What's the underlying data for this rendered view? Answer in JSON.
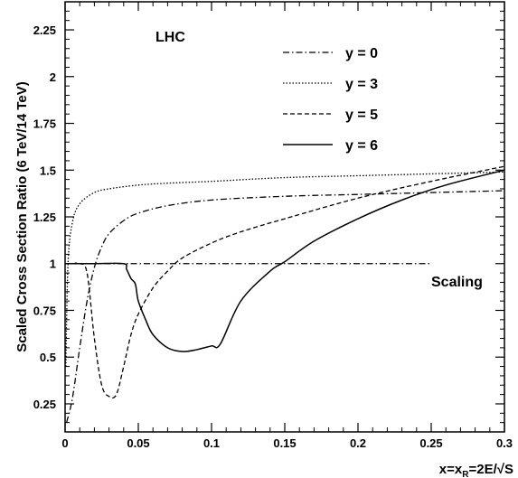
{
  "chart_data": {
    "type": "line",
    "title": "",
    "xlabel": "x=x_R=2E/√S",
    "xlabel_parts": [
      "x=x",
      "R",
      "=2E/√S"
    ],
    "ylabel": "Scaled Cross Section Ratio (6 TeV/14 TeV)",
    "xlim": [
      0,
      0.3
    ],
    "ylim": [
      0.1,
      2.4
    ],
    "xticks": [
      0,
      0.05,
      0.1,
      0.15,
      0.2,
      0.25,
      0.3
    ],
    "xtick_labels": [
      "0",
      "0.05",
      "0.1",
      "0.15",
      "0.2",
      "0.25",
      "0.3"
    ],
    "yticks": [
      0.25,
      0.5,
      0.75,
      1,
      1.25,
      1.5,
      1.75,
      2,
      2.25
    ],
    "ytick_labels": [
      "0.25",
      "0.5",
      "0.75",
      "1",
      "1.25",
      "1.5",
      "1.75",
      "2",
      "2.25"
    ],
    "grid": false,
    "legend_position": "top-right",
    "annotations": {
      "lhc": "LHC",
      "scaling": "Scaling"
    },
    "series": [
      {
        "name": "y = 0",
        "style": "dashdot",
        "x": [
          0.001,
          0.005,
          0.01,
          0.015,
          0.02,
          0.025,
          0.03,
          0.04,
          0.05,
          0.07,
          0.1,
          0.15,
          0.2,
          0.25,
          0.3
        ],
        "y": [
          0.15,
          0.28,
          0.55,
          0.8,
          0.98,
          1.09,
          1.16,
          1.23,
          1.27,
          1.31,
          1.34,
          1.36,
          1.37,
          1.38,
          1.39
        ]
      },
      {
        "name": "y = 3",
        "style": "dotted",
        "x": [
          0.0005,
          0.002,
          0.005,
          0.01,
          0.02,
          0.03,
          0.05,
          0.07,
          0.1,
          0.15,
          0.2,
          0.25,
          0.3
        ],
        "y": [
          0.45,
          1.0,
          1.22,
          1.32,
          1.38,
          1.4,
          1.42,
          1.43,
          1.44,
          1.46,
          1.47,
          1.48,
          1.49
        ]
      },
      {
        "name": "y = 5",
        "style": "dashed",
        "x": [
          0.0,
          0.005,
          0.01,
          0.015,
          0.02,
          0.025,
          0.03,
          0.035,
          0.04,
          0.045,
          0.05,
          0.06,
          0.07,
          0.08,
          0.1,
          0.12,
          0.15,
          0.2,
          0.25,
          0.3
        ],
        "y": [
          1.0,
          1.0,
          1.0,
          0.95,
          0.6,
          0.35,
          0.29,
          0.3,
          0.45,
          0.62,
          0.73,
          0.87,
          0.96,
          1.03,
          1.11,
          1.17,
          1.24,
          1.35,
          1.44,
          1.52
        ]
      },
      {
        "name": "y = 6",
        "style": "solid",
        "x": [
          0.0,
          0.02,
          0.04,
          0.042,
          0.045,
          0.048,
          0.05,
          0.055,
          0.06,
          0.07,
          0.08,
          0.09,
          0.1,
          0.106,
          0.12,
          0.14,
          0.15,
          0.17,
          0.2,
          0.23,
          0.26,
          0.3
        ],
        "y": [
          1.0,
          1.0,
          1.0,
          0.97,
          0.92,
          0.89,
          0.8,
          0.7,
          0.62,
          0.55,
          0.53,
          0.54,
          0.56,
          0.57,
          0.8,
          0.96,
          1.01,
          1.12,
          1.24,
          1.34,
          1.42,
          1.5
        ]
      },
      {
        "name": "Scaling",
        "style": "dashdot",
        "x": [
          0.0,
          0.25
        ],
        "y": [
          1.0,
          1.0
        ]
      }
    ]
  }
}
